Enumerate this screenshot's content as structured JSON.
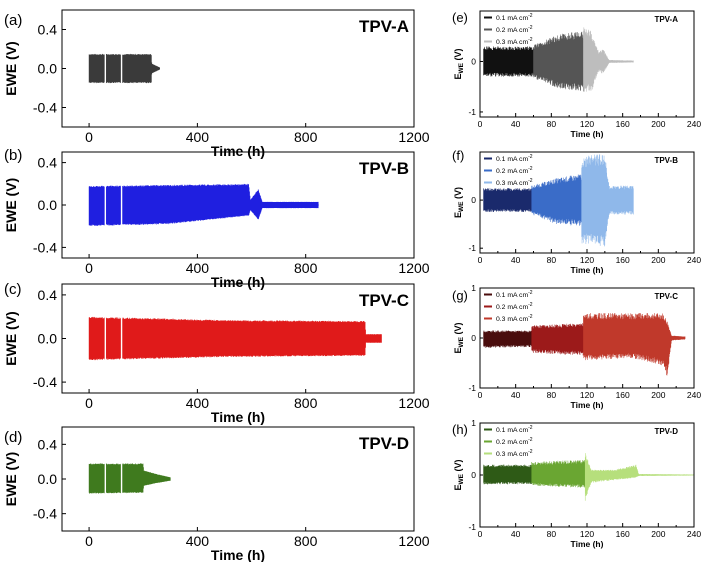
{
  "chart_data": [
    {
      "type": "line",
      "panel": "(a)",
      "title": "TPV-A",
      "xlabel": "Time (h)",
      "ylabel": "EWE (V)",
      "xlim": [
        -100,
        1200
      ],
      "ylim": [
        -0.6,
        0.6
      ],
      "xticks": [
        0,
        400,
        800,
        1200
      ],
      "yticks": [
        -0.4,
        0.0,
        0.4
      ],
      "ytick_labels": [
        "-0.4",
        "0.0",
        "0.4"
      ],
      "grid": false,
      "color": "#3a3a3a",
      "envelope": [
        {
          "x": 0,
          "hi": 0.15,
          "lo": -0.15
        },
        {
          "x": 230,
          "hi": 0.15,
          "lo": -0.15
        },
        {
          "x": 232,
          "hi": 0.05,
          "lo": -0.05
        },
        {
          "x": 262,
          "hi": 0.01,
          "lo": -0.01
        }
      ],
      "gaps": [
        60,
        120
      ]
    },
    {
      "type": "line",
      "panel": "(b)",
      "title": "TPV-B",
      "xlabel": "Time (h)",
      "ylabel": "EWE (V)",
      "xlim": [
        -100,
        1200
      ],
      "ylim": [
        -0.5,
        0.5
      ],
      "xticks": [
        0,
        400,
        800,
        1200
      ],
      "yticks": [
        -0.4,
        0.0,
        0.4
      ],
      "ytick_labels": [
        "-0.4",
        "0.0",
        "0.4"
      ],
      "grid": false,
      "color": "#1f1fe0",
      "envelope": [
        {
          "x": 0,
          "hi": 0.18,
          "lo": -0.2
        },
        {
          "x": 300,
          "hi": 0.19,
          "lo": -0.18
        },
        {
          "x": 590,
          "hi": 0.2,
          "lo": -0.1
        },
        {
          "x": 596,
          "hi": 0.05,
          "lo": -0.05
        },
        {
          "x": 625,
          "hi": 0.15,
          "lo": -0.14
        },
        {
          "x": 640,
          "hi": 0.03,
          "lo": -0.03
        },
        {
          "x": 848,
          "hi": 0.03,
          "lo": -0.03
        }
      ],
      "gaps": [
        60,
        120
      ]
    },
    {
      "type": "line",
      "panel": "(c)",
      "title": "TPV-C",
      "xlabel": "Time (h)",
      "ylabel": "EWE (V)",
      "xlim": [
        -100,
        1200
      ],
      "ylim": [
        -0.5,
        0.5
      ],
      "xticks": [
        0,
        400,
        800,
        1200
      ],
      "yticks": [
        -0.4,
        0.0,
        0.4
      ],
      "ytick_labels": [
        "-0.4",
        "0.0",
        "0.4"
      ],
      "grid": false,
      "color": "#e01a1a",
      "envelope": [
        {
          "x": 0,
          "hi": 0.2,
          "lo": -0.2
        },
        {
          "x": 500,
          "hi": 0.17,
          "lo": -0.17
        },
        {
          "x": 1020,
          "hi": 0.16,
          "lo": -0.16
        },
        {
          "x": 1022,
          "hi": 0.04,
          "lo": -0.04
        },
        {
          "x": 1080,
          "hi": 0.04,
          "lo": -0.04
        }
      ],
      "gaps": [
        60,
        120
      ]
    },
    {
      "type": "line",
      "panel": "(d)",
      "title": "TPV-D",
      "xlabel": "Time (h)",
      "ylabel": "EWE (V)",
      "xlim": [
        -100,
        1200
      ],
      "ylim": [
        -0.6,
        0.6
      ],
      "xticks": [
        0,
        400,
        800,
        1200
      ],
      "yticks": [
        -0.4,
        0.0,
        0.4
      ],
      "ytick_labels": [
        "-0.4",
        "0.0",
        "0.4"
      ],
      "grid": false,
      "color": "#3f7a1e",
      "envelope": [
        {
          "x": 0,
          "hi": 0.18,
          "lo": -0.17
        },
        {
          "x": 200,
          "hi": 0.18,
          "lo": -0.16
        },
        {
          "x": 202,
          "hi": 0.1,
          "lo": -0.08
        },
        {
          "x": 245,
          "hi": 0.06,
          "lo": -0.05
        },
        {
          "x": 300,
          "hi": 0.02,
          "lo": -0.02
        }
      ],
      "gaps": [
        60,
        120
      ]
    },
    {
      "type": "line",
      "panel": "(e)",
      "title": "TPV-A",
      "xlabel": "Time (h)",
      "ylabel_main": "E",
      "ylabel_sub": "WE",
      "ylabel_unit": " (V)",
      "xlim": [
        0,
        240
      ],
      "ylim": [
        -1.1,
        1.0
      ],
      "xticks": [
        0,
        20,
        40,
        60,
        80,
        100,
        120,
        140,
        160,
        180,
        200,
        220,
        240
      ],
      "xtick_labels": [
        "0",
        "",
        "40",
        "",
        "80",
        "",
        "120",
        "",
        "160",
        "",
        "200",
        "",
        "240"
      ],
      "yticks": [
        -1,
        0
      ],
      "ytick_labels": [
        "-1",
        "0"
      ],
      "grid": false,
      "legend_position": "top-left",
      "legend": [
        {
          "label": "0.1 mA cm",
          "sup": "-2",
          "color": "#111111"
        },
        {
          "label": "0.2 mA cm",
          "sup": "-2",
          "color": "#555555"
        },
        {
          "label": "0.3 mA cm",
          "sup": "-2",
          "color": "#bdbdbd"
        }
      ],
      "segments": [
        {
          "color": "#111111",
          "x0": 4,
          "x1": 60,
          "env": [
            [
              4,
              0.3,
              -0.3
            ],
            [
              60,
              0.3,
              -0.3
            ]
          ]
        },
        {
          "color": "#555555",
          "x0": 60,
          "x1": 116,
          "env": [
            [
              60,
              0.33,
              -0.33
            ],
            [
              90,
              0.55,
              -0.55
            ],
            [
              116,
              0.6,
              -0.6
            ]
          ]
        },
        {
          "color": "#bdbdbd",
          "x0": 116,
          "x1": 172,
          "env": [
            [
              116,
              0.7,
              -0.6
            ],
            [
              125,
              0.6,
              -0.6
            ],
            [
              133,
              0.2,
              -0.2
            ],
            [
              138,
              0.25,
              -0.25
            ],
            [
              145,
              0.03,
              -0.03
            ],
            [
              172,
              0.02,
              -0.02
            ]
          ]
        }
      ]
    },
    {
      "type": "line",
      "panel": "(f)",
      "title": "TPV-B",
      "xlabel": "Time (h)",
      "ylabel_main": "E",
      "ylabel_sub": "WE",
      "ylabel_unit": " (V)",
      "xlim": [
        0,
        240
      ],
      "ylim": [
        -1.1,
        1.0
      ],
      "xticks": [
        0,
        20,
        40,
        60,
        80,
        100,
        120,
        140,
        160,
        180,
        200,
        220,
        240
      ],
      "xtick_labels": [
        "0",
        "",
        "40",
        "",
        "80",
        "",
        "120",
        "",
        "160",
        "",
        "200",
        "",
        "240"
      ],
      "yticks": [
        -1,
        0
      ],
      "ytick_labels": [
        "-1",
        "0"
      ],
      "grid": false,
      "legend_position": "top-left",
      "legend": [
        {
          "label": "0.1 mA cm",
          "sup": "-2",
          "color": "#1a2a6c"
        },
        {
          "label": "0.2 mA cm",
          "sup": "-2",
          "color": "#3a6cc8"
        },
        {
          "label": "0.3 mA cm",
          "sup": "-2",
          "color": "#8fb8ea"
        }
      ],
      "segments": [
        {
          "color": "#1a2a6c",
          "x0": 4,
          "x1": 58,
          "env": [
            [
              4,
              0.25,
              -0.25
            ],
            [
              58,
              0.25,
              -0.25
            ]
          ]
        },
        {
          "color": "#3a6cc8",
          "x0": 58,
          "x1": 114,
          "env": [
            [
              58,
              0.3,
              -0.3
            ],
            [
              85,
              0.45,
              -0.5
            ],
            [
              114,
              0.55,
              -0.55
            ]
          ]
        },
        {
          "color": "#8fb8ea",
          "x0": 114,
          "x1": 172,
          "env": [
            [
              114,
              0.9,
              -0.95
            ],
            [
              128,
              0.95,
              -0.9
            ],
            [
              140,
              0.95,
              -1.0
            ],
            [
              145,
              0.3,
              -0.3
            ],
            [
              172,
              0.3,
              -0.3
            ]
          ]
        }
      ]
    },
    {
      "type": "line",
      "panel": "(g)",
      "title": "TPV-C",
      "xlabel": "Time (h)",
      "ylabel_main": "E",
      "ylabel_sub": "WE",
      "ylabel_unit": " (V)",
      "xlim": [
        0,
        240
      ],
      "ylim": [
        -1.0,
        1.0
      ],
      "xticks": [
        0,
        20,
        40,
        60,
        80,
        100,
        120,
        140,
        160,
        180,
        200,
        220,
        240
      ],
      "xtick_labels": [
        "0",
        "",
        "40",
        "",
        "80",
        "",
        "120",
        "",
        "160",
        "",
        "200",
        "",
        "240"
      ],
      "yticks": [
        -1,
        0,
        1
      ],
      "ytick_labels": [
        "-1",
        "0",
        "1"
      ],
      "grid": false,
      "legend_position": "top-left",
      "legend": [
        {
          "label": "0.1 mA cm",
          "sup": "-2",
          "color": "#4a0d0d"
        },
        {
          "label": "0.2 mA cm",
          "sup": "-2",
          "color": "#9c1a1a"
        },
        {
          "label": "0.3 mA cm",
          "sup": "-2",
          "color": "#c0392b"
        }
      ],
      "segments": [
        {
          "color": "#4a0d0d",
          "x0": 4,
          "x1": 58,
          "env": [
            [
              4,
              0.15,
              -0.2
            ],
            [
              58,
              0.15,
              -0.18
            ]
          ]
        },
        {
          "color": "#9c1a1a",
          "x0": 58,
          "x1": 116,
          "env": [
            [
              58,
              0.25,
              -0.3
            ],
            [
              116,
              0.3,
              -0.35
            ]
          ]
        },
        {
          "color": "#c0392b",
          "x0": 116,
          "x1": 230,
          "env": [
            [
              116,
              0.5,
              -0.45
            ],
            [
              170,
              0.5,
              -0.4
            ],
            [
              205,
              0.5,
              -0.55
            ],
            [
              210,
              0.35,
              -0.8
            ],
            [
              215,
              0.05,
              -0.05
            ],
            [
              230,
              0.03,
              -0.03
            ]
          ]
        }
      ]
    },
    {
      "type": "line",
      "panel": "(h)",
      "title": "TPV-D",
      "xlabel": "Time (h)",
      "ylabel_main": "E",
      "ylabel_sub": "WE",
      "ylabel_unit": " (V)",
      "xlim": [
        0,
        240
      ],
      "ylim": [
        -1.0,
        1.0
      ],
      "xticks": [
        0,
        20,
        40,
        60,
        80,
        100,
        120,
        140,
        160,
        180,
        200,
        220,
        240
      ],
      "xtick_labels": [
        "0",
        "",
        "40",
        "",
        "80",
        "",
        "120",
        "",
        "160",
        "",
        "200",
        "",
        "240"
      ],
      "yticks": [
        -1,
        0,
        1
      ],
      "ytick_labels": [
        "-1",
        "0",
        "1"
      ],
      "grid": false,
      "legend_position": "top-left",
      "legend": [
        {
          "label": "0.1 mA cm",
          "sup": "-2",
          "color": "#2e5a16"
        },
        {
          "label": "0.2 mA cm",
          "sup": "-2",
          "color": "#6aa632"
        },
        {
          "label": "0.3 mA cm",
          "sup": "-2",
          "color": "#b6df7c"
        }
      ],
      "segments": [
        {
          "color": "#2e5a16",
          "x0": 4,
          "x1": 58,
          "env": [
            [
              4,
              0.2,
              -0.18
            ],
            [
              58,
              0.2,
              -0.18
            ]
          ]
        },
        {
          "color": "#6aa632",
          "x0": 58,
          "x1": 118,
          "env": [
            [
              58,
              0.25,
              -0.2
            ],
            [
              118,
              0.3,
              -0.25
            ]
          ]
        },
        {
          "color": "#b6df7c",
          "x0": 118,
          "x1": 240,
          "env": [
            [
              118,
              0.45,
              -0.5
            ],
            [
              125,
              0.1,
              -0.15
            ],
            [
              150,
              0.1,
              -0.1
            ],
            [
              175,
              0.2,
              -0.05
            ],
            [
              178,
              0.02,
              -0.02
            ],
            [
              240,
              0.01,
              -0.01
            ]
          ]
        }
      ]
    }
  ]
}
